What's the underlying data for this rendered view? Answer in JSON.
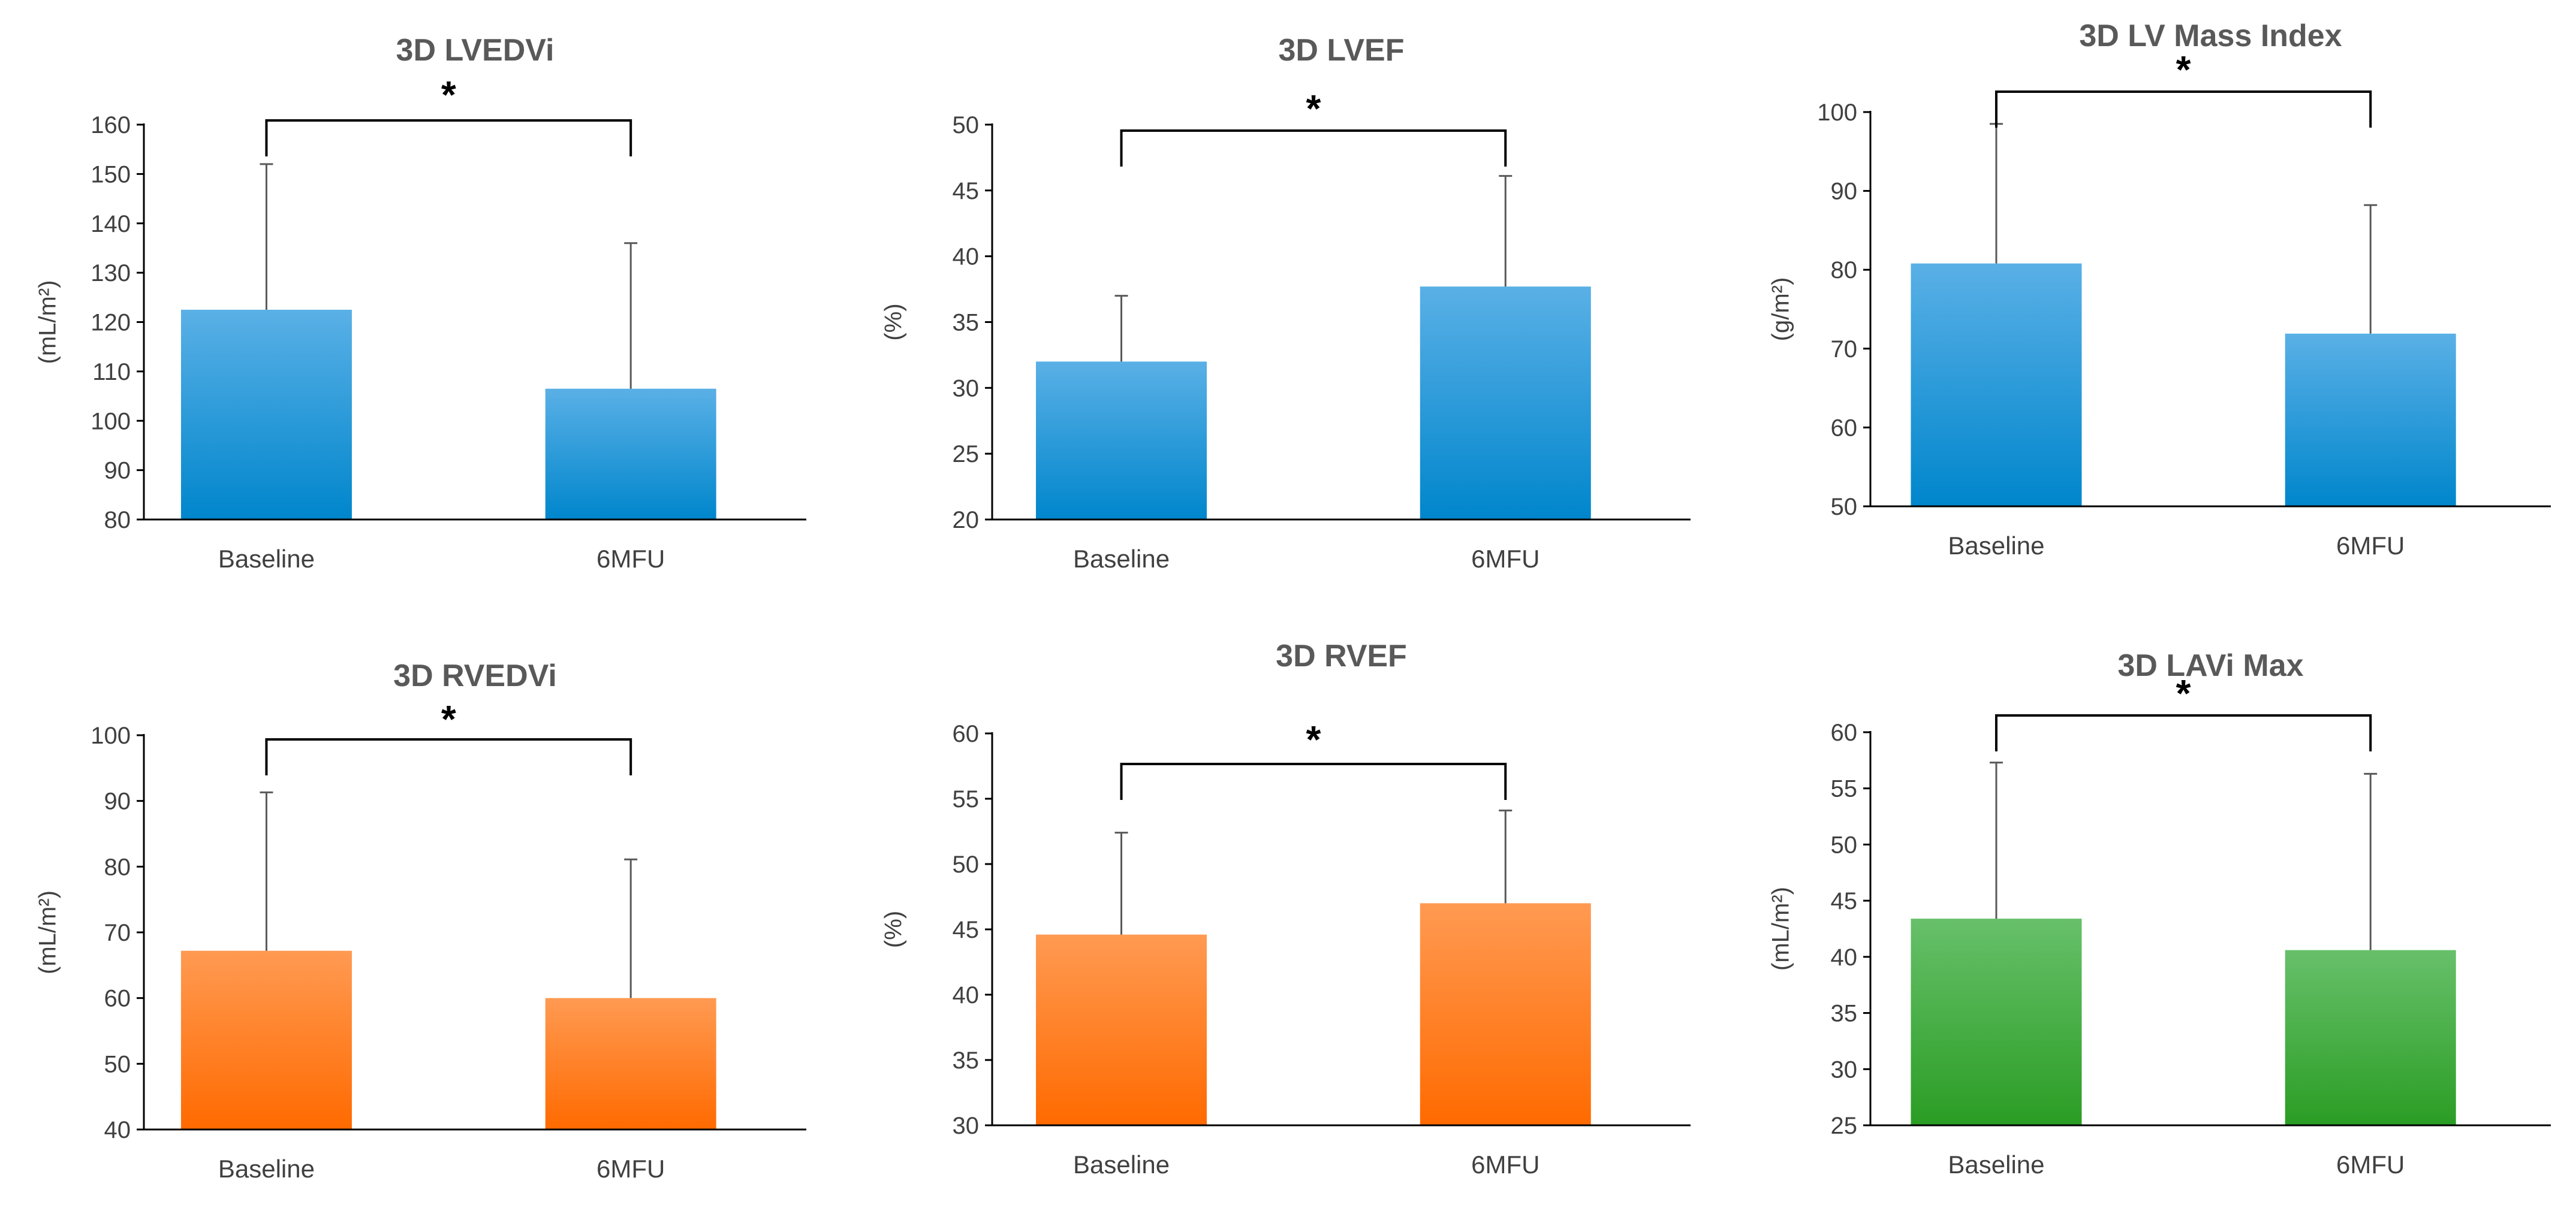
{
  "colors": {
    "blue": [
      "#5ab0e6",
      "#0086cc"
    ],
    "orange": [
      "#ff9a52",
      "#ff6a00"
    ],
    "green": [
      "#67c06a",
      "#2a9d24"
    ]
  },
  "chart_data": [
    {
      "type": "bar",
      "title": "3D LVEDVi",
      "xlabel": "",
      "ylabel": "(mL/m²)",
      "categories": [
        "Baseline",
        "6MFU"
      ],
      "values": [
        122.5,
        106.5
      ],
      "errors": [
        29.5,
        29.5
      ],
      "ylim": [
        80,
        160
      ],
      "yticks": [
        80,
        90,
        100,
        110,
        120,
        130,
        140,
        150,
        160
      ],
      "significance": "*",
      "color": "blue"
    },
    {
      "type": "bar",
      "title": "3D LVEF",
      "xlabel": "",
      "ylabel": "(%)",
      "categories": [
        "Baseline",
        "6MFU"
      ],
      "values": [
        32,
        37.7
      ],
      "errors": [
        5,
        8.4
      ],
      "ylim": [
        20,
        50
      ],
      "yticks": [
        20,
        25,
        30,
        35,
        40,
        45,
        50
      ],
      "significance": "*",
      "color": "blue"
    },
    {
      "type": "bar",
      "title": "3D LV Mass Index",
      "xlabel": "",
      "ylabel": "(g/m²)",
      "categories": [
        "Baseline",
        "6MFU"
      ],
      "values": [
        80.8,
        71.9
      ],
      "errors": [
        17.7,
        16.3
      ],
      "ylim": [
        50,
        100
      ],
      "yticks": [
        50,
        60,
        70,
        80,
        90,
        100
      ],
      "significance": "*",
      "color": "blue"
    },
    {
      "type": "bar",
      "title": "3D RVEDVi",
      "xlabel": "",
      "ylabel": "(mL/m²)",
      "categories": [
        "Baseline",
        "6MFU"
      ],
      "values": [
        67.2,
        60
      ],
      "errors": [
        24.1,
        21.1
      ],
      "ylim": [
        40,
        100
      ],
      "yticks": [
        40,
        50,
        60,
        70,
        80,
        90,
        100
      ],
      "significance": "*",
      "color": "orange"
    },
    {
      "type": "bar",
      "title": "3D RVEF",
      "xlabel": "",
      "ylabel": "(%)",
      "categories": [
        "Baseline",
        "6MFU"
      ],
      "values": [
        44.6,
        47
      ],
      "errors": [
        7.8,
        7.1
      ],
      "ylim": [
        30,
        60
      ],
      "yticks": [
        30,
        35,
        40,
        45,
        50,
        55,
        60
      ],
      "significance": "*",
      "color": "orange"
    },
    {
      "type": "bar",
      "title": "3D LAVi Max",
      "xlabel": "",
      "ylabel": "(mL/m²)",
      "categories": [
        "Baseline",
        "6MFU"
      ],
      "values": [
        43.4,
        40.6
      ],
      "errors": [
        13.9,
        15.7
      ],
      "ylim": [
        25,
        60
      ],
      "yticks": [
        25,
        30,
        35,
        40,
        45,
        50,
        55,
        60
      ],
      "significance": "*",
      "color": "green"
    }
  ]
}
